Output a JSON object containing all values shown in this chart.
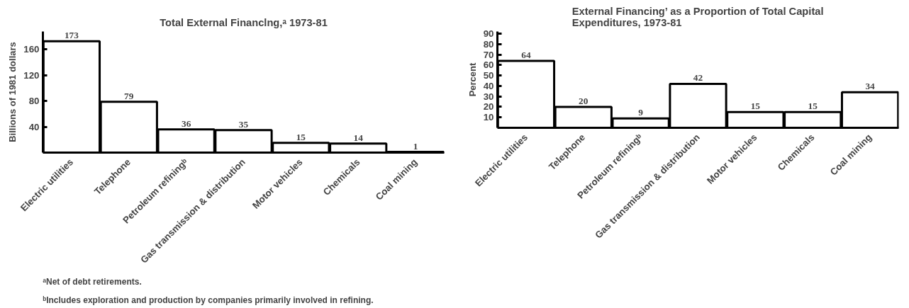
{
  "chart_data": [
    {
      "type": "bar",
      "title": "Total External Financlng,ᵃ 1973-81",
      "ylabel": "Billions of 1981 dollars",
      "categories": [
        "Electric utilities",
        "Telephone",
        "Petroleum refiningᵇ",
        "Gas transmission & distribution",
        "Motor vehicles",
        "Chemicals",
        "Coal mining"
      ],
      "values": [
        173,
        79,
        36,
        35,
        15,
        14,
        1
      ],
      "color": "#ffffff",
      "ylim": [
        0,
        188
      ],
      "yticks": [
        40,
        80,
        120,
        160
      ],
      "grid": false,
      "data_labels": true,
      "annotations": [
        "ᵃNet of debt retirements.",
        "ᵇIncludes exploration and production by companies primarily involved in refining."
      ]
    },
    {
      "type": "bar",
      "title": "External Financing’ as a Proportion of Total Capital Expenditures, 1973-81",
      "ylabel": "Percent",
      "categories": [
        "Electric utilities",
        "Telephone",
        "Petroleum refiningᵇ",
        "Gas transmission & distribution",
        "Motor vehicles",
        "Chemicals",
        "Coal mining"
      ],
      "values": [
        64,
        20,
        9,
        42,
        15,
        15,
        34
      ],
      "color": "#ffffff",
      "ylim": [
        0,
        92
      ],
      "yticks": [
        10,
        20,
        30,
        40,
        50,
        60,
        70,
        80,
        90
      ],
      "grid": false,
      "data_labels": true
    }
  ]
}
